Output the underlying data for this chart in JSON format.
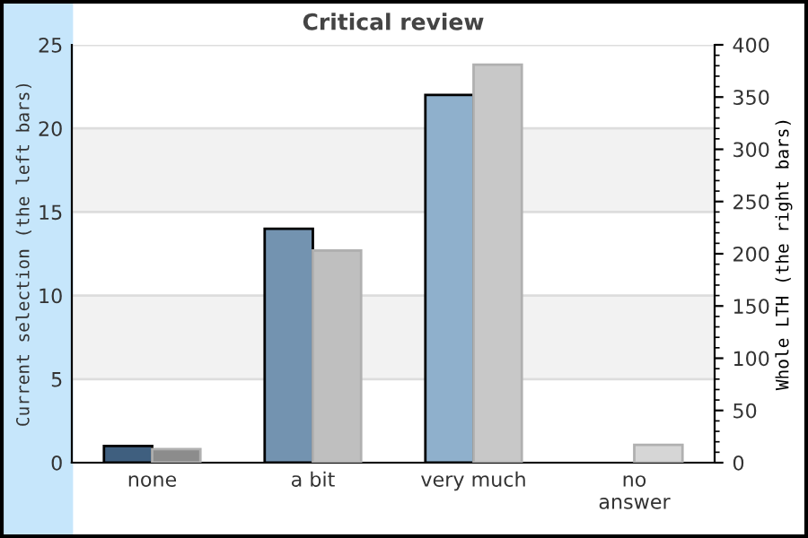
{
  "chart_data": {
    "type": "bar",
    "title": "Critical review",
    "ylabel": "Current selection (the left bars)",
    "y2label": "Whole LTH (the right bars)",
    "categories": [
      "none",
      "a bit",
      "very much",
      "no\nanswer"
    ],
    "series": [
      {
        "colors": [
          "#3f5f7f",
          "#7393b0",
          "#8fb0cc",
          "#8fb0cc"
        ],
        "values": [
          1,
          14,
          22,
          0
        ]
      },
      {
        "colors": [
          "#8c8c8c",
          "#bfbfbf",
          "#c8c8c8",
          "#d6d6d6"
        ],
        "values": [
          13,
          203,
          381,
          17
        ],
        "axis": "y2"
      }
    ],
    "ylim": [
      0,
      25
    ],
    "yticks": [
      0,
      5,
      10,
      15,
      20,
      25
    ],
    "y2lim": [
      0,
      400
    ],
    "y2ticks": [
      0,
      50,
      100,
      150,
      200,
      250,
      300,
      350,
      400
    ],
    "bands": [
      {
        "axis": "y",
        "from": 5,
        "to": 10,
        "color": "#f2f2f2"
      },
      {
        "axis": "y",
        "from": 15,
        "to": 20,
        "color": "#f2f2f2"
      }
    ],
    "grid": "y"
  }
}
